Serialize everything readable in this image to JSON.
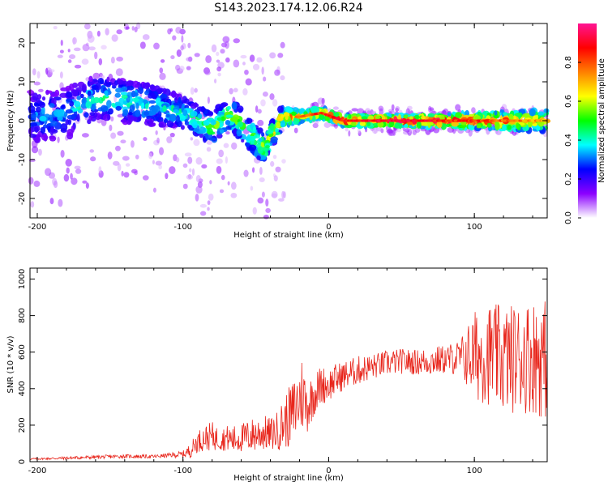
{
  "figure": {
    "title": "S143.2023.174.12.06.R24"
  },
  "chart_data": [
    {
      "type": "heatmap",
      "xlabel": "Height of straight line (km)",
      "ylabel": "Frequency (Hz)",
      "xlim": [
        -205,
        150
      ],
      "ylim": [
        -25,
        25
      ],
      "xticks": [
        -200,
        -100,
        0,
        100
      ],
      "yticks": [
        -20,
        -10,
        0,
        10,
        20
      ],
      "colorbar": {
        "label": "Normalized spectral amplitude",
        "range": [
          0,
          1
        ],
        "ticks": [
          0.0,
          0.2,
          0.4,
          0.6,
          0.8
        ],
        "colormap": [
          "#ffffff",
          "#8b00ff",
          "#0000ff",
          "#00ffff",
          "#00ff00",
          "#ffff00",
          "#ff8000",
          "#ff0000",
          "#ff1493"
        ]
      },
      "ridge": [
        {
          "x": -200,
          "f": 1,
          "spread": 5,
          "amp": 0.35
        },
        {
          "x": -180,
          "f": 2,
          "spread": 5,
          "amp": 0.35
        },
        {
          "x": -160,
          "f": 6,
          "spread": 4,
          "amp": 0.45
        },
        {
          "x": -140,
          "f": 5,
          "spread": 4,
          "amp": 0.45
        },
        {
          "x": -120,
          "f": 4,
          "spread": 4,
          "amp": 0.4
        },
        {
          "x": -100,
          "f": 2,
          "spread": 3,
          "amp": 0.45
        },
        {
          "x": -80,
          "f": -2,
          "spread": 3,
          "amp": 0.55
        },
        {
          "x": -68,
          "f": 2,
          "spread": 3,
          "amp": 0.6
        },
        {
          "x": -55,
          "f": -3,
          "spread": 3,
          "amp": 0.55
        },
        {
          "x": -45,
          "f": -7,
          "spread": 3,
          "amp": 0.6
        },
        {
          "x": -32,
          "f": 1,
          "spread": 2,
          "amp": 0.7
        },
        {
          "x": -20,
          "f": 1,
          "spread": 1,
          "amp": 0.85
        },
        {
          "x": -5,
          "f": 2,
          "spread": 1,
          "amp": 0.9
        },
        {
          "x": 10,
          "f": 0,
          "spread": 1,
          "amp": 0.95
        },
        {
          "x": 50,
          "f": 0,
          "spread": 1,
          "amp": 0.98
        },
        {
          "x": 100,
          "f": 0,
          "spread": 1.5,
          "amp": 0.9
        },
        {
          "x": 150,
          "f": 0,
          "spread": 2,
          "amp": 0.75
        }
      ]
    },
    {
      "type": "line",
      "xlabel": "Height of straight line (km)",
      "ylabel": "SNR (10 * v/v)",
      "xlim": [
        -205,
        150
      ],
      "ylim": [
        0,
        1060
      ],
      "xticks": [
        -200,
        -100,
        0,
        100
      ],
      "yticks": [
        0,
        200,
        400,
        600,
        800,
        1000
      ],
      "color": "#e8261c",
      "series": [
        {
          "x": [
            -205,
            -180,
            -160,
            -140,
            -120,
            -110,
            -100,
            -95,
            -90,
            -85,
            -80,
            -75,
            -70,
            -65,
            -60,
            -55,
            -50,
            -45,
            -40,
            -35,
            -30,
            -25,
            -20,
            -18,
            -15,
            -10,
            -5,
            0,
            5,
            10,
            20,
            30,
            40,
            50,
            60,
            70,
            80,
            90,
            100,
            110,
            120,
            130,
            140,
            150
          ],
          "y": [
            15,
            20,
            25,
            30,
            28,
            35,
            40,
            60,
            110,
            130,
            140,
            120,
            130,
            120,
            130,
            140,
            150,
            160,
            150,
            170,
            220,
            260,
            340,
            380,
            300,
            370,
            420,
            420,
            450,
            470,
            500,
            520,
            540,
            550,
            545,
            550,
            560,
            570,
            580,
            590,
            560,
            570,
            580,
            560
          ],
          "noise": [
            5,
            8,
            10,
            10,
            10,
            12,
            20,
            40,
            60,
            70,
            80,
            60,
            70,
            80,
            80,
            90,
            100,
            100,
            90,
            110,
            150,
            180,
            200,
            220,
            150,
            120,
            110,
            90,
            90,
            80,
            80,
            70,
            70,
            70,
            70,
            80,
            80,
            100,
            250,
            280,
            300,
            300,
            320,
            330
          ]
        }
      ]
    }
  ]
}
